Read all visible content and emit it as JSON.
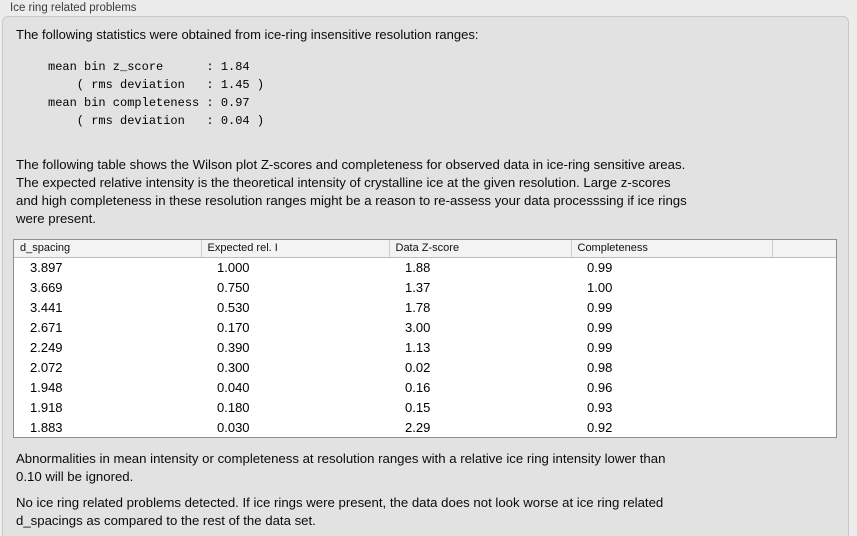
{
  "panel": {
    "title": "Ice ring related problems",
    "intro": "The following statistics were obtained from ice-ring insensitive resolution ranges:"
  },
  "stats_lines": [
    "mean bin z_score      : 1.84",
    "    ( rms deviation   : 1.45 )",
    "mean bin completeness : 0.97",
    "    ( rms deviation   : 0.04 )"
  ],
  "description_lines": [
    "The following table shows the Wilson plot Z-scores and completeness for observed data in ice-ring sensitive areas.",
    "The expected relative intensity is the theoretical intensity of crystalline ice at the given resolution. Large z-scores",
    "and high completeness in these resolution ranges might be a reason to re-assess your data processsing if ice rings",
    "were present."
  ],
  "table": {
    "headers": [
      "d_spacing",
      "Expected rel. I",
      "Data Z-score",
      "Completeness",
      ""
    ],
    "rows": [
      [
        "3.897",
        "1.000",
        "1.88",
        "0.99"
      ],
      [
        "3.669",
        "0.750",
        "1.37",
        "1.00"
      ],
      [
        "3.441",
        "0.530",
        "1.78",
        "0.99"
      ],
      [
        "2.671",
        "0.170",
        "3.00",
        "0.99"
      ],
      [
        "2.249",
        "0.390",
        "1.13",
        "0.99"
      ],
      [
        "2.072",
        "0.300",
        "0.02",
        "0.98"
      ],
      [
        "1.948",
        "0.040",
        "0.16",
        "0.96"
      ],
      [
        "1.918",
        "0.180",
        "0.15",
        "0.93"
      ],
      [
        "1.883",
        "0.030",
        "2.29",
        "0.92"
      ]
    ]
  },
  "note_lines": [
    "Abnormalities in mean intensity or completeness at resolution ranges with a relative ice ring intensity lower than",
    "0.10 will be ignored."
  ],
  "conclusion_lines": [
    "No ice ring related problems detected. If ice rings were present, the data does not look worse at ice ring related",
    "d_spacings as compared to the rest of the data set."
  ],
  "colors": {
    "window_bg": "#ececec",
    "panel_bg": "#e2e2e2",
    "table_bg": "#ffffff",
    "table_border": "#8f8f8f",
    "table_header_bg": "#f3f3f3"
  }
}
